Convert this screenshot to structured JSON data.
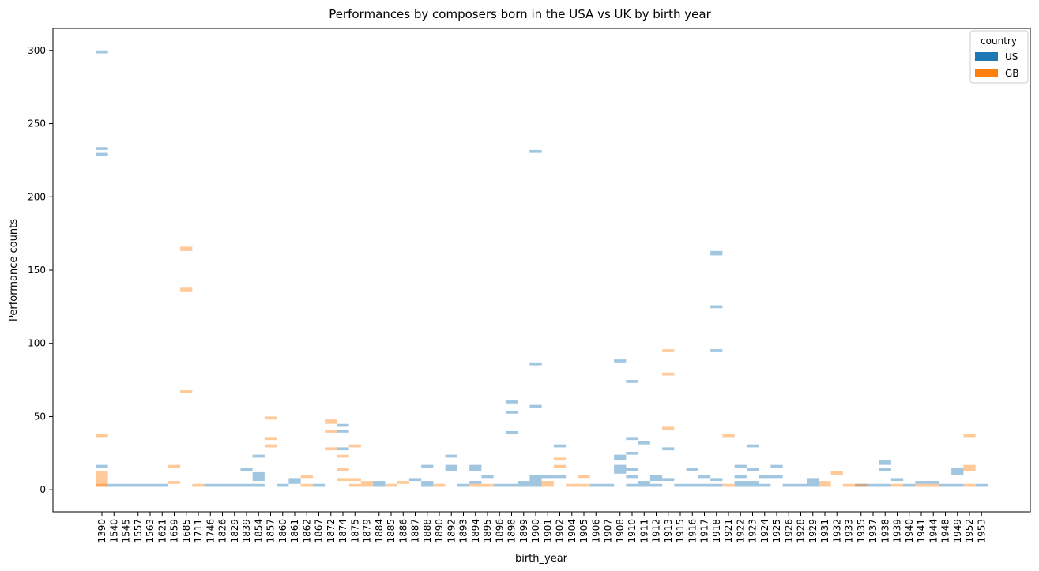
{
  "chart_data": {
    "type": "heatmap",
    "title": "Performances by composers born in the USA vs UK by birth year",
    "xlabel": "birth_year",
    "ylabel": "Performance counts",
    "ylim": [
      -15,
      315
    ],
    "yticks": [
      0,
      50,
      100,
      150,
      200,
      250,
      300
    ],
    "grid": false,
    "legend": {
      "title": "country",
      "placement": "top-right"
    },
    "categories": [
      "1390",
      "1540",
      "1545",
      "1557",
      "1563",
      "1621",
      "1659",
      "1685",
      "1711",
      "1746",
      "1826",
      "1829",
      "1839",
      "1854",
      "1857",
      "1860",
      "1861",
      "1862",
      "1867",
      "1872",
      "1874",
      "1875",
      "1879",
      "1884",
      "1885",
      "1886",
      "1887",
      "1888",
      "1890",
      "1892",
      "1893",
      "1894",
      "1895",
      "1896",
      "1898",
      "1899",
      "1900",
      "1901",
      "1902",
      "1904",
      "1905",
      "1906",
      "1907",
      "1908",
      "1910",
      "1911",
      "1912",
      "1913",
      "1915",
      "1916",
      "1917",
      "1918",
      "1921",
      "1922",
      "1923",
      "1924",
      "1925",
      "1926",
      "1928",
      "1929",
      "1931",
      "1932",
      "1933",
      "1935",
      "1937",
      "1938",
      "1939",
      "1940",
      "1941",
      "1944",
      "1948",
      "1949",
      "1952",
      "1953"
    ],
    "series": [
      {
        "name": "US",
        "color": "#1f77b4",
        "cells": [
          {
            "x": "1390",
            "y": [
              298,
              300
            ]
          },
          {
            "x": "1390",
            "y": [
              232,
              234
            ]
          },
          {
            "x": "1390",
            "y": [
              228,
              230
            ]
          },
          {
            "x": "1390",
            "y": [
              15,
              17
            ]
          },
          {
            "x": "1540",
            "y": [
              2,
              4
            ]
          },
          {
            "x": "1545",
            "y": [
              2,
              4
            ]
          },
          {
            "x": "1557",
            "y": [
              2,
              4
            ]
          },
          {
            "x": "1563",
            "y": [
              2,
              4
            ]
          },
          {
            "x": "1621",
            "y": [
              2,
              4
            ]
          },
          {
            "x": "1746",
            "y": [
              2,
              4
            ]
          },
          {
            "x": "1826",
            "y": [
              2,
              4
            ]
          },
          {
            "x": "1829",
            "y": [
              2,
              4
            ]
          },
          {
            "x": "1839",
            "y": [
              2,
              4
            ]
          },
          {
            "x": "1839",
            "y": [
              13,
              15
            ]
          },
          {
            "x": "1854",
            "y": [
              2,
              4
            ]
          },
          {
            "x": "1854",
            "y": [
              6,
              12
            ]
          },
          {
            "x": "1854",
            "y": [
              22,
              24
            ]
          },
          {
            "x": "1860",
            "y": [
              2,
              4
            ]
          },
          {
            "x": "1861",
            "y": [
              4,
              8
            ]
          },
          {
            "x": "1867",
            "y": [
              2,
              4
            ]
          },
          {
            "x": "1874",
            "y": [
              43,
              45
            ]
          },
          {
            "x": "1874",
            "y": [
              39,
              41
            ]
          },
          {
            "x": "1874",
            "y": [
              27,
              29
            ]
          },
          {
            "x": "1884",
            "y": [
              2,
              6
            ]
          },
          {
            "x": "1887",
            "y": [
              6,
              8
            ]
          },
          {
            "x": "1888",
            "y": [
              2,
              6
            ]
          },
          {
            "x": "1888",
            "y": [
              15,
              17
            ]
          },
          {
            "x": "1892",
            "y": [
              13,
              17
            ]
          },
          {
            "x": "1892",
            "y": [
              22,
              24
            ]
          },
          {
            "x": "1893",
            "y": [
              2,
              4
            ]
          },
          {
            "x": "1894",
            "y": [
              4,
              6
            ]
          },
          {
            "x": "1894",
            "y": [
              13,
              17
            ]
          },
          {
            "x": "1895",
            "y": [
              8,
              10
            ]
          },
          {
            "x": "1896",
            "y": [
              2,
              4
            ]
          },
          {
            "x": "1898",
            "y": [
              2,
              4
            ]
          },
          {
            "x": "1898",
            "y": [
              59,
              61
            ]
          },
          {
            "x": "1898",
            "y": [
              52,
              54
            ]
          },
          {
            "x": "1898",
            "y": [
              38,
              40
            ]
          },
          {
            "x": "1899",
            "y": [
              2,
              6
            ]
          },
          {
            "x": "1900",
            "y": [
              2,
              10
            ]
          },
          {
            "x": "1900",
            "y": [
              230,
              232
            ]
          },
          {
            "x": "1900",
            "y": [
              85,
              87
            ]
          },
          {
            "x": "1900",
            "y": [
              56,
              58
            ]
          },
          {
            "x": "1901",
            "y": [
              8,
              10
            ]
          },
          {
            "x": "1902",
            "y": [
              8,
              10
            ]
          },
          {
            "x": "1902",
            "y": [
              29,
              31
            ]
          },
          {
            "x": "1906",
            "y": [
              2,
              4
            ]
          },
          {
            "x": "1907",
            "y": [
              2,
              4
            ]
          },
          {
            "x": "1908",
            "y": [
              11,
              17
            ]
          },
          {
            "x": "1908",
            "y": [
              20,
              24
            ]
          },
          {
            "x": "1908",
            "y": [
              87,
              89
            ]
          },
          {
            "x": "1910",
            "y": [
              2,
              4
            ]
          },
          {
            "x": "1910",
            "y": [
              8,
              10
            ]
          },
          {
            "x": "1910",
            "y": [
              13,
              15
            ]
          },
          {
            "x": "1910",
            "y": [
              24,
              26
            ]
          },
          {
            "x": "1910",
            "y": [
              34,
              36
            ]
          },
          {
            "x": "1910",
            "y": [
              73,
              75
            ]
          },
          {
            "x": "1911",
            "y": [
              2,
              6
            ]
          },
          {
            "x": "1911",
            "y": [
              31,
              33
            ]
          },
          {
            "x": "1912",
            "y": [
              2,
              4
            ]
          },
          {
            "x": "1912",
            "y": [
              6,
              10
            ]
          },
          {
            "x": "1913",
            "y": [
              6,
              8
            ]
          },
          {
            "x": "1913",
            "y": [
              27,
              29
            ]
          },
          {
            "x": "1915",
            "y": [
              2,
              4
            ]
          },
          {
            "x": "1916",
            "y": [
              2,
              4
            ]
          },
          {
            "x": "1916",
            "y": [
              13,
              15
            ]
          },
          {
            "x": "1917",
            "y": [
              2,
              4
            ]
          },
          {
            "x": "1917",
            "y": [
              8,
              10
            ]
          },
          {
            "x": "1918",
            "y": [
              2,
              4
            ]
          },
          {
            "x": "1918",
            "y": [
              6,
              8
            ]
          },
          {
            "x": "1918",
            "y": [
              94,
              96
            ]
          },
          {
            "x": "1918",
            "y": [
              124,
              126
            ]
          },
          {
            "x": "1918",
            "y": [
              160,
              163
            ]
          },
          {
            "x": "1922",
            "y": [
              2,
              6
            ]
          },
          {
            "x": "1922",
            "y": [
              8,
              10
            ]
          },
          {
            "x": "1922",
            "y": [
              15,
              17
            ]
          },
          {
            "x": "1923",
            "y": [
              2,
              6
            ]
          },
          {
            "x": "1923",
            "y": [
              13,
              15
            ]
          },
          {
            "x": "1923",
            "y": [
              29,
              31
            ]
          },
          {
            "x": "1924",
            "y": [
              2,
              4
            ]
          },
          {
            "x": "1924",
            "y": [
              8,
              10
            ]
          },
          {
            "x": "1925",
            "y": [
              8,
              10
            ]
          },
          {
            "x": "1925",
            "y": [
              15,
              17
            ]
          },
          {
            "x": "1926",
            "y": [
              2,
              4
            ]
          },
          {
            "x": "1928",
            "y": [
              2,
              4
            ]
          },
          {
            "x": "1929",
            "y": [
              2,
              8
            ]
          },
          {
            "x": "1935",
            "y": [
              2,
              4
            ]
          },
          {
            "x": "1937",
            "y": [
              2,
              4
            ]
          },
          {
            "x": "1938",
            "y": [
              2,
              4
            ]
          },
          {
            "x": "1938",
            "y": [
              13,
              15
            ]
          },
          {
            "x": "1938",
            "y": [
              17,
              20
            ]
          },
          {
            "x": "1939",
            "y": [
              6,
              8
            ]
          },
          {
            "x": "1940",
            "y": [
              2,
              4
            ]
          },
          {
            "x": "1941",
            "y": [
              4,
              6
            ]
          },
          {
            "x": "1944",
            "y": [
              4,
              6
            ]
          },
          {
            "x": "1948",
            "y": [
              2,
              4
            ]
          },
          {
            "x": "1949",
            "y": [
              2,
              4
            ]
          },
          {
            "x": "1949",
            "y": [
              10,
              15
            ]
          },
          {
            "x": "1953",
            "y": [
              2,
              4
            ]
          }
        ]
      },
      {
        "name": "GB",
        "color": "#ff7f0e",
        "cells": [
          {
            "x": "1390",
            "y": [
              2,
              13
            ]
          },
          {
            "x": "1390",
            "y": [
              2,
              4
            ]
          },
          {
            "x": "1390",
            "y": [
              36,
              38
            ]
          },
          {
            "x": "1659",
            "y": [
              4,
              6
            ]
          },
          {
            "x": "1659",
            "y": [
              15,
              17
            ]
          },
          {
            "x": "1685",
            "y": [
              163,
              166
            ]
          },
          {
            "x": "1685",
            "y": [
              135,
              138
            ]
          },
          {
            "x": "1685",
            "y": [
              66,
              68
            ]
          },
          {
            "x": "1711",
            "y": [
              2,
              4
            ]
          },
          {
            "x": "1857",
            "y": [
              48,
              50
            ]
          },
          {
            "x": "1857",
            "y": [
              34,
              36
            ]
          },
          {
            "x": "1857",
            "y": [
              29,
              31
            ]
          },
          {
            "x": "1862",
            "y": [
              2,
              4
            ]
          },
          {
            "x": "1862",
            "y": [
              8,
              10
            ]
          },
          {
            "x": "1872",
            "y": [
              45,
              48
            ]
          },
          {
            "x": "1872",
            "y": [
              39,
              41
            ]
          },
          {
            "x": "1872",
            "y": [
              27,
              29
            ]
          },
          {
            "x": "1874",
            "y": [
              6,
              8
            ]
          },
          {
            "x": "1874",
            "y": [
              13,
              15
            ]
          },
          {
            "x": "1874",
            "y": [
              22,
              24
            ]
          },
          {
            "x": "1875",
            "y": [
              2,
              4
            ]
          },
          {
            "x": "1875",
            "y": [
              6,
              8
            ]
          },
          {
            "x": "1875",
            "y": [
              29,
              31
            ]
          },
          {
            "x": "1879",
            "y": [
              2,
              6
            ]
          },
          {
            "x": "1885",
            "y": [
              2,
              4
            ]
          },
          {
            "x": "1886",
            "y": [
              4,
              6
            ]
          },
          {
            "x": "1890",
            "y": [
              2,
              4
            ]
          },
          {
            "x": "1894",
            "y": [
              2,
              4
            ]
          },
          {
            "x": "1895",
            "y": [
              2,
              4
            ]
          },
          {
            "x": "1901",
            "y": [
              2,
              6
            ]
          },
          {
            "x": "1902",
            "y": [
              15,
              17
            ]
          },
          {
            "x": "1902",
            "y": [
              20,
              22
            ]
          },
          {
            "x": "1904",
            "y": [
              2,
              4
            ]
          },
          {
            "x": "1905",
            "y": [
              2,
              4
            ]
          },
          {
            "x": "1905",
            "y": [
              8,
              10
            ]
          },
          {
            "x": "1913",
            "y": [
              94,
              96
            ]
          },
          {
            "x": "1913",
            "y": [
              78,
              80
            ]
          },
          {
            "x": "1913",
            "y": [
              41,
              43
            ]
          },
          {
            "x": "1921",
            "y": [
              2,
              4
            ]
          },
          {
            "x": "1921",
            "y": [
              36,
              38
            ]
          },
          {
            "x": "1931",
            "y": [
              2,
              6
            ]
          },
          {
            "x": "1932",
            "y": [
              10,
              13
            ]
          },
          {
            "x": "1933",
            "y": [
              2,
              4
            ]
          },
          {
            "x": "1935",
            "y": [
              2,
              4
            ]
          },
          {
            "x": "1939",
            "y": [
              2,
              4
            ]
          },
          {
            "x": "1941",
            "y": [
              2,
              4
            ]
          },
          {
            "x": "1944",
            "y": [
              2,
              4
            ]
          },
          {
            "x": "1952",
            "y": [
              2,
              4
            ]
          },
          {
            "x": "1952",
            "y": [
              13,
              17
            ]
          },
          {
            "x": "1952",
            "y": [
              36,
              38
            ]
          }
        ]
      }
    ]
  }
}
